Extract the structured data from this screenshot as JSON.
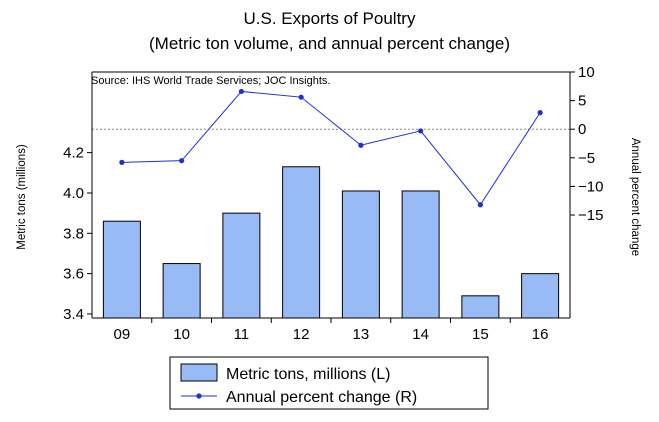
{
  "chart_data": {
    "type": "bar+line",
    "title": "U.S. Exports of Poultry",
    "subtitle": "(Metric ton volume, and annual percent change)",
    "source": "Source: IHS World Trade Services; JOC Insights.",
    "categories": [
      "09",
      "10",
      "11",
      "12",
      "13",
      "14",
      "15",
      "16"
    ],
    "left_axis": {
      "label": "Metric tons (millions)",
      "ticks": [
        "3.4",
        "3.6",
        "3.8",
        "4.0",
        "4.2"
      ],
      "range": [
        3.38,
        4.6
      ]
    },
    "right_axis": {
      "label": "Annual percent change",
      "ticks": [
        "10",
        "5",
        "0",
        "−5",
        "−10",
        "−15"
      ],
      "range": [
        -33,
        10
      ]
    },
    "series": [
      {
        "name": "Metric tons, millions (L)",
        "kind": "bar",
        "axis": "left",
        "color": "#99bbf5",
        "values": [
          3.86,
          3.65,
          3.9,
          4.13,
          4.01,
          4.01,
          3.49,
          3.6
        ]
      },
      {
        "name": "Annual percent change (R)",
        "kind": "line",
        "axis": "right",
        "color": "#1f2fd8",
        "values": [
          -5.8,
          -5.5,
          6.6,
          5.6,
          -2.8,
          -0.3,
          -13.2,
          2.9
        ]
      }
    ],
    "reference_line": 0,
    "legend": {
      "position": "bottom-center",
      "items": [
        "Metric tons, millions (L)",
        "Annual percent change (R)"
      ]
    },
    "grid": false
  }
}
